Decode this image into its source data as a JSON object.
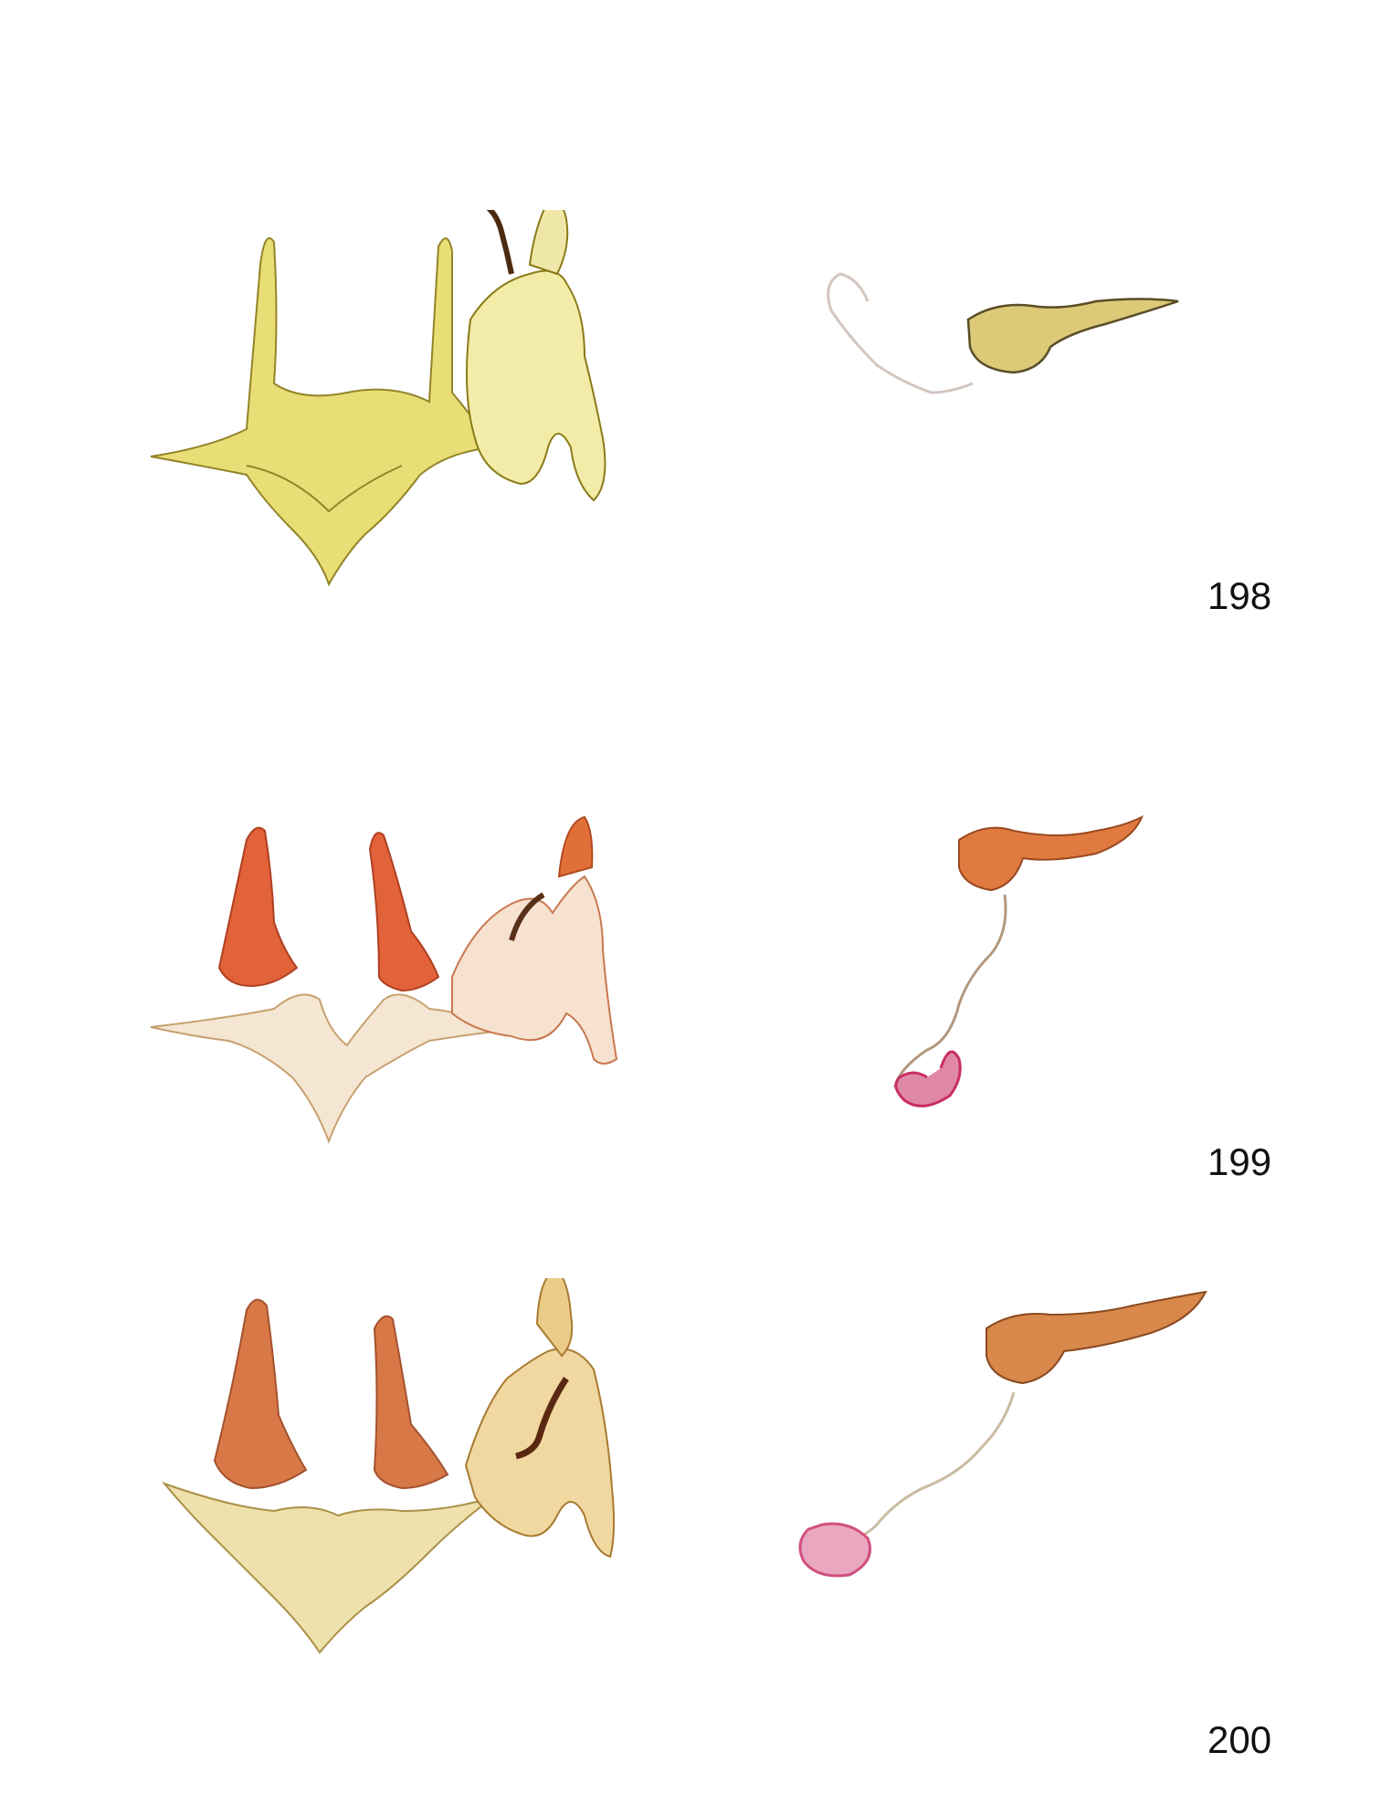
{
  "figures": [
    {
      "number": "198",
      "palette": {
        "genitalia": "#d8c430",
        "valva": "#b8a020",
        "aedeagus": "#b8a030",
        "ductus": "#c8b8b0",
        "cornutus": "#5a3018"
      }
    },
    {
      "number": "199",
      "palette": {
        "genitalia": "#f0d8b8",
        "valva": "#d84a20",
        "aedeagus": "#d86a30",
        "ductus": "#a08060",
        "cornutus": "#6a3a20",
        "bursa": "#c83060"
      }
    },
    {
      "number": "200",
      "palette": {
        "genitalia": "#e8d090",
        "valva": "#c85a28",
        "aedeagus": "#c86a30",
        "ductus": "#c0b090",
        "cornutus": "#5a2810",
        "bursa": "#d05080"
      }
    }
  ]
}
